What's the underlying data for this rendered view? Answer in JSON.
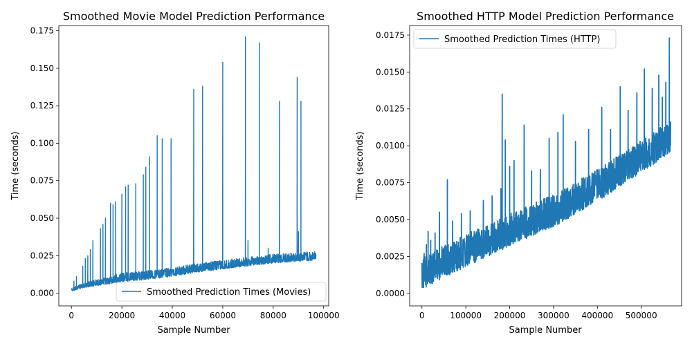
{
  "colors": {
    "series": "#1f77b4",
    "axes": "#000000",
    "background": "#ffffff",
    "legend_border": "#cccccc"
  },
  "chart_data": [
    {
      "type": "line",
      "title": "Smoothed Movie Model Prediction Performance",
      "xlabel": "Sample Number",
      "ylabel": "Time (seconds)",
      "xlim": [
        -5000,
        102000
      ],
      "ylim": [
        -0.0085,
        0.1785
      ],
      "xticks": [
        0,
        20000,
        40000,
        60000,
        80000,
        100000
      ],
      "xtick_labels": [
        "0",
        "20000",
        "40000",
        "60000",
        "80000",
        "100000"
      ],
      "yticks": [
        0.0,
        0.025,
        0.05,
        0.075,
        0.1,
        0.125,
        0.15,
        0.175
      ],
      "ytick_labels": [
        "0.000",
        "0.025",
        "0.050",
        "0.075",
        "0.100",
        "0.125",
        "0.150",
        "0.175"
      ],
      "legend": {
        "position": "lower-right",
        "entries": [
          "Smoothed Prediction Times (Movies)"
        ]
      },
      "grid": false,
      "series": [
        {
          "name": "Smoothed Prediction Times (Movies)",
          "x_range": [
            0,
            97000
          ],
          "baseline": [
            [
              0,
              0.001
            ],
            [
              3000,
              0.003
            ],
            [
              10000,
              0.005
            ],
            [
              20000,
              0.0075
            ],
            [
              30000,
              0.009
            ],
            [
              40000,
              0.011
            ],
            [
              50000,
              0.014
            ],
            [
              60000,
              0.016
            ],
            [
              70000,
              0.018
            ],
            [
              80000,
              0.02
            ],
            [
              97000,
              0.022
            ]
          ],
          "band": 0.006,
          "spikes": [
            [
              1000,
              0.008
            ],
            [
              2000,
              0.011
            ],
            [
              4500,
              0.018
            ],
            [
              5500,
              0.023
            ],
            [
              6500,
              0.025
            ],
            [
              7500,
              0.029
            ],
            [
              8500,
              0.035
            ],
            [
              11500,
              0.043
            ],
            [
              12500,
              0.046
            ],
            [
              13500,
              0.05
            ],
            [
              15500,
              0.06
            ],
            [
              16500,
              0.059
            ],
            [
              17500,
              0.061
            ],
            [
              20000,
              0.066
            ],
            [
              21500,
              0.071
            ],
            [
              22500,
              0.072
            ],
            [
              25500,
              0.073
            ],
            [
              28500,
              0.079
            ],
            [
              29500,
              0.084
            ],
            [
              31000,
              0.091
            ],
            [
              34000,
              0.105
            ],
            [
              36000,
              0.103
            ],
            [
              39500,
              0.103
            ],
            [
              48500,
              0.136
            ],
            [
              52000,
              0.138
            ],
            [
              60000,
              0.154
            ],
            [
              69000,
              0.171
            ],
            [
              70000,
              0.035
            ],
            [
              74500,
              0.167
            ],
            [
              78000,
              0.03
            ],
            [
              82500,
              0.128
            ],
            [
              89500,
              0.144
            ],
            [
              90000,
              0.041
            ],
            [
              91000,
              0.128
            ]
          ]
        }
      ]
    },
    {
      "type": "line",
      "title": "Smoothed HTTP Model Prediction Performance",
      "xlabel": "Sample Number",
      "ylabel": "Time (seconds)",
      "xlim": [
        -28000,
        592000
      ],
      "ylim": [
        -0.00085,
        0.01815
      ],
      "xticks": [
        0,
        100000,
        200000,
        300000,
        400000,
        500000
      ],
      "xtick_labels": [
        "0",
        "100000",
        "200000",
        "300000",
        "400000",
        "500000"
      ],
      "yticks": [
        0.0,
        0.0025,
        0.005,
        0.0075,
        0.01,
        0.0125,
        0.015,
        0.0175
      ],
      "ytick_labels": [
        "0.0000",
        "0.0025",
        "0.0050",
        "0.0075",
        "0.0100",
        "0.0125",
        "0.0150",
        "0.0175"
      ],
      "legend": {
        "position": "upper-left",
        "entries": [
          "Smoothed Prediction Times (HTTP)"
        ]
      },
      "grid": false,
      "series": [
        {
          "name": "Smoothed Prediction Times (HTTP)",
          "x_range": [
            0,
            567000
          ],
          "baseline": [
            [
              0,
              0.0002
            ],
            [
              20000,
              0.0006
            ],
            [
              100000,
              0.0018
            ],
            [
              200000,
              0.0032
            ],
            [
              300000,
              0.0045
            ],
            [
              400000,
              0.0062
            ],
            [
              500000,
              0.0082
            ],
            [
              567000,
              0.0095
            ]
          ],
          "band": 0.0022,
          "spikes": [
            [
              2000,
              0.0018
            ],
            [
              5000,
              0.0027
            ],
            [
              10000,
              0.0033
            ],
            [
              14000,
              0.0042
            ],
            [
              20000,
              0.0036
            ],
            [
              30000,
              0.0041
            ],
            [
              40000,
              0.0055
            ],
            [
              58000,
              0.0077
            ],
            [
              70000,
              0.0049
            ],
            [
              90000,
              0.0054
            ],
            [
              110000,
              0.0056
            ],
            [
              140000,
              0.0063
            ],
            [
              160000,
              0.0066
            ],
            [
              180000,
              0.0071
            ],
            [
              183000,
              0.0135
            ],
            [
              190000,
              0.0104
            ],
            [
              200000,
              0.0086
            ],
            [
              210000,
              0.009
            ],
            [
              233000,
              0.0114
            ],
            [
              250000,
              0.0083
            ],
            [
              270000,
              0.0084
            ],
            [
              290000,
              0.0105
            ],
            [
              310000,
              0.0109
            ],
            [
              322000,
              0.0121
            ],
            [
              350000,
              0.0103
            ],
            [
              380000,
              0.0111
            ],
            [
              410000,
              0.0126
            ],
            [
              430000,
              0.0111
            ],
            [
              452000,
              0.014
            ],
            [
              470000,
              0.0124
            ],
            [
              490000,
              0.0136
            ],
            [
              507000,
              0.0152
            ],
            [
              525000,
              0.0139
            ],
            [
              540000,
              0.0148
            ],
            [
              548000,
              0.0133
            ],
            [
              556000,
              0.0143
            ],
            [
              564000,
              0.0173
            ],
            [
              566000,
              0.0116
            ]
          ]
        }
      ]
    }
  ]
}
